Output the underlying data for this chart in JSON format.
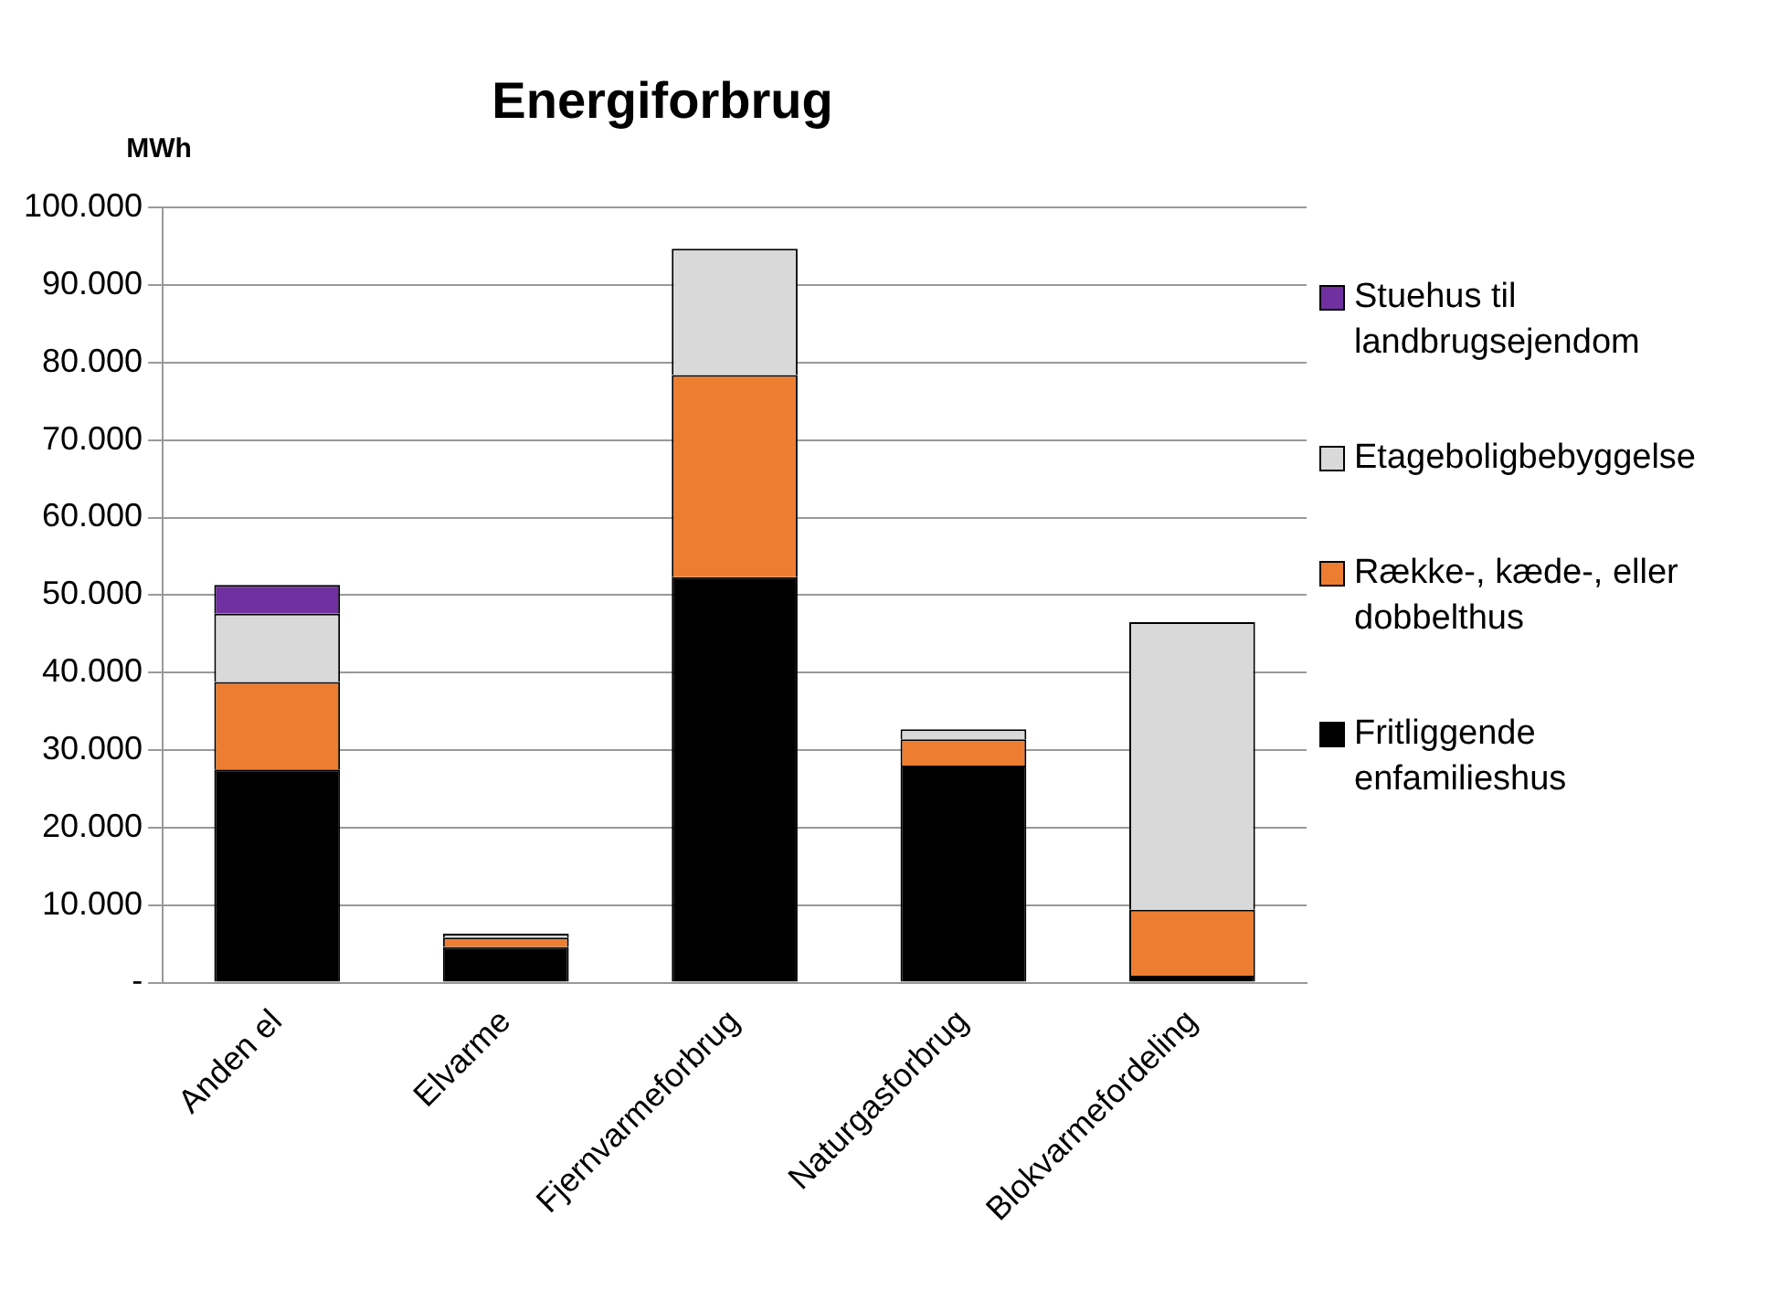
{
  "chart_data": {
    "type": "bar",
    "title": "Energiforbrug",
    "ylabel": "MWh",
    "stacked": true,
    "legend": "right",
    "grid": "y",
    "categories": [
      "Anden el",
      "Elvarme",
      "Fjernvarmeforbrug",
      "Naturgasforbrug",
      "Blokvarmefordeling"
    ],
    "ylim": [
      0,
      100000
    ],
    "yticks": [
      {
        "value": 0,
        "label": "-"
      },
      {
        "value": 10000,
        "label": "10.000"
      },
      {
        "value": 20000,
        "label": "20.000"
      },
      {
        "value": 30000,
        "label": "30.000"
      },
      {
        "value": 40000,
        "label": "40.000"
      },
      {
        "value": 50000,
        "label": "50.000"
      },
      {
        "value": 60000,
        "label": "60.000"
      },
      {
        "value": 70000,
        "label": "70.000"
      },
      {
        "value": 80000,
        "label": "80.000"
      },
      {
        "value": 90000,
        "label": "90.000"
      },
      {
        "value": 100000,
        "label": "100.000"
      }
    ],
    "series": [
      {
        "name": "Fritliggende enfamilieshus",
        "color": "#000000",
        "values": [
          27500,
          4600,
          52300,
          28000,
          900
        ]
      },
      {
        "name": "Række-, kæde-, eller dobbelthus",
        "color": "#ed7d31",
        "values": [
          11300,
          1200,
          26100,
          3400,
          8500
        ]
      },
      {
        "name": "Etageboligbebyggelse",
        "color": "#d9d9d9",
        "values": [
          8800,
          500,
          16300,
          1300,
          37100
        ]
      },
      {
        "name": "Stuehus til landbrugsejendom",
        "color": "#7030a0",
        "values": [
          3700,
          0,
          0,
          0,
          0
        ]
      }
    ]
  }
}
